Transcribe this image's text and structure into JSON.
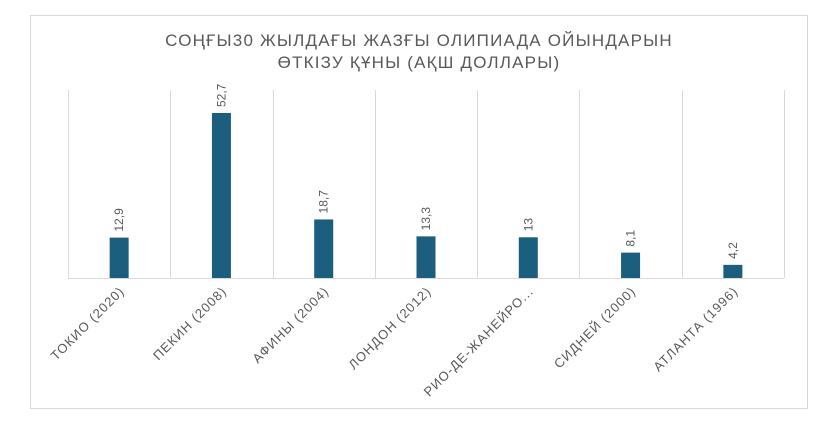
{
  "chart_data": {
    "type": "bar",
    "title_lines": [
      "СОҢҒЫ30 ЖЫЛДАҒЫ ЖАЗҒЫ ОЛИПИАДА ОЙЫНДАРЫН",
      "ӨТКІЗУ ҚҰНЫ (АҚШ ДОЛЛАРЫ)"
    ],
    "categories": [
      "ТОКИО (2020)",
      "ПЕКИН (2008)",
      "АФИНЫ (2004)",
      "ЛОНДОН (2012)",
      "РИО-ДЕ-ЖАНЕЙРО...",
      "СИДНЕЙ (2000)",
      "АТЛАНТА (1996)"
    ],
    "values": [
      12.9,
      52.7,
      18.7,
      13.3,
      13,
      8.1,
      4.2
    ],
    "data_labels": [
      "12,9",
      "52,7",
      "18,7",
      "13,3",
      "13",
      "8,1",
      "4,2"
    ],
    "ylim": [
      0,
      60
    ],
    "grid": "vertical category separators",
    "legend": "none",
    "bar_color": "#1b5e7e",
    "text_color": "#595959",
    "grid_color": "#d9d9d9"
  }
}
